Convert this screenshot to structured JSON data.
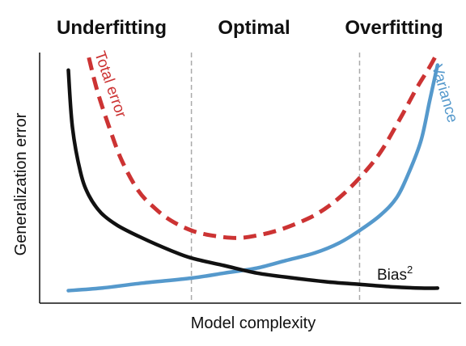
{
  "chart_data": {
    "type": "line",
    "title": "",
    "xlabel": "Model complexity",
    "ylabel": "Generalization error",
    "regions": [
      {
        "label": "Underfitting",
        "x_range": [
          0,
          0.37
        ]
      },
      {
        "label": "Optimal",
        "x_range": [
          0.37,
          0.78
        ]
      },
      {
        "label": "Overfitting",
        "x_range": [
          0.78,
          1.0
        ]
      }
    ],
    "region_boundaries": [
      0.37,
      0.78
    ],
    "xlim": [
      0,
      1
    ],
    "ylim": [
      0,
      1
    ],
    "grid": false,
    "series": [
      {
        "name": "Total error",
        "label_display": "Total error",
        "color": "#cc3333",
        "dash": true,
        "x": [
          0.12,
          0.14,
          0.17,
          0.2,
          0.24,
          0.28,
          0.32,
          0.37,
          0.42,
          0.48,
          0.53,
          0.58,
          0.63,
          0.68,
          0.73,
          0.78,
          0.83,
          0.88,
          0.92,
          0.95,
          0.97
        ],
        "y": [
          0.98,
          0.85,
          0.7,
          0.57,
          0.45,
          0.38,
          0.33,
          0.29,
          0.27,
          0.26,
          0.27,
          0.29,
          0.32,
          0.36,
          0.42,
          0.5,
          0.6,
          0.74,
          0.86,
          0.94,
          1.0
        ]
      },
      {
        "name": "Variance",
        "label_display": "Variance",
        "color": "#5599cc",
        "dash": false,
        "x": [
          0.07,
          0.15,
          0.25,
          0.37,
          0.45,
          0.53,
          0.6,
          0.67,
          0.73,
          0.78,
          0.83,
          0.87,
          0.9,
          0.93,
          0.95,
          0.97
        ],
        "y": [
          0.05,
          0.06,
          0.08,
          0.1,
          0.12,
          0.14,
          0.17,
          0.2,
          0.24,
          0.29,
          0.35,
          0.42,
          0.52,
          0.65,
          0.8,
          0.95
        ]
      },
      {
        "name": "Bias2",
        "label_display": "Bias",
        "label_sup": "2",
        "color": "#111111",
        "dash": false,
        "x": [
          0.07,
          0.08,
          0.1,
          0.12,
          0.15,
          0.19,
          0.25,
          0.32,
          0.37,
          0.45,
          0.53,
          0.62,
          0.7,
          0.78,
          0.86,
          0.93,
          0.97
        ],
        "y": [
          0.93,
          0.7,
          0.52,
          0.43,
          0.36,
          0.31,
          0.26,
          0.21,
          0.18,
          0.15,
          0.12,
          0.1,
          0.085,
          0.075,
          0.065,
          0.06,
          0.06
        ]
      }
    ]
  }
}
